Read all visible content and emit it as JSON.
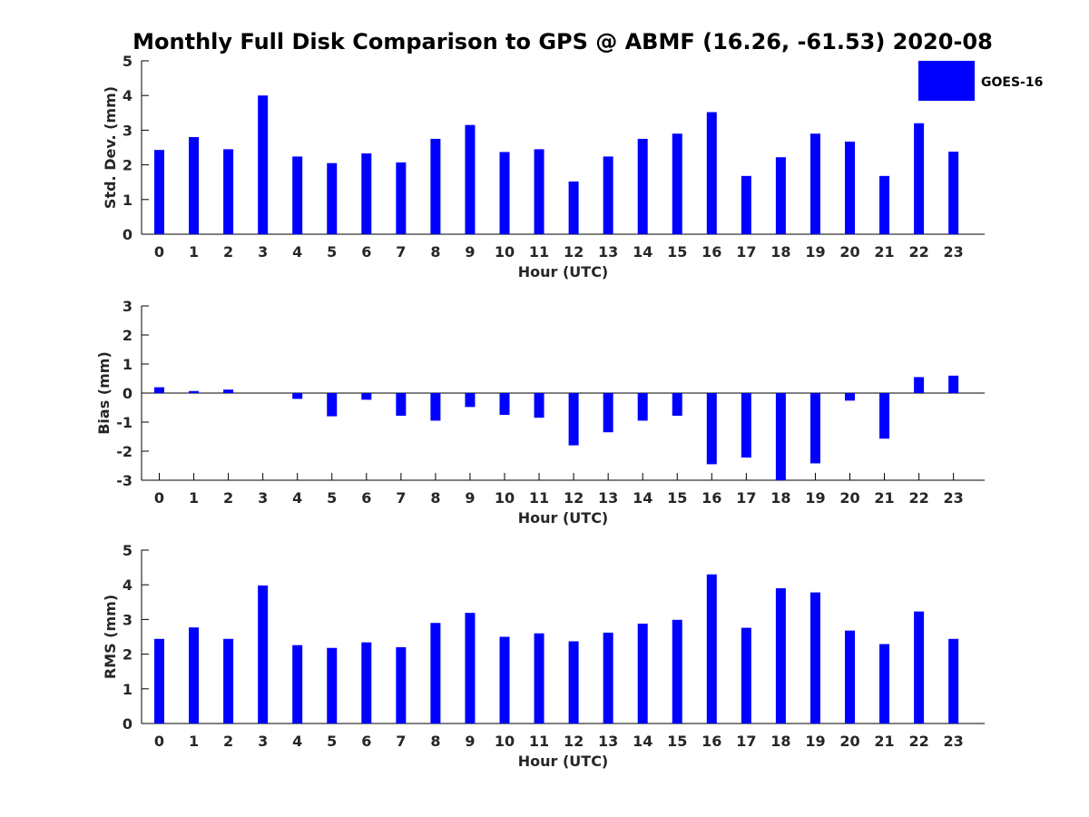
{
  "title": "Monthly Full Disk Comparison to GPS @ ABMF (16.26, -61.53) 2020-08",
  "legend": {
    "label": "GOES-16",
    "color": "#0000ff",
    "placement": "top-right"
  },
  "chart_data": [
    {
      "type": "bar",
      "xlabel": "Hour (UTC)",
      "ylabel": "Std. Dev. (mm)",
      "ylim": [
        0,
        5
      ],
      "yticks": [
        "0",
        "1",
        "2",
        "3",
        "4",
        "5"
      ],
      "categories": [
        "0",
        "1",
        "2",
        "3",
        "4",
        "5",
        "6",
        "7",
        "8",
        "9",
        "10",
        "11",
        "12",
        "13",
        "14",
        "15",
        "16",
        "17",
        "18",
        "19",
        "20",
        "21",
        "22",
        "23"
      ],
      "series": [
        {
          "name": "GOES-16",
          "color": "#0000ff",
          "values": [
            2.43,
            2.8,
            2.45,
            4.0,
            2.24,
            2.05,
            2.33,
            2.07,
            2.75,
            3.15,
            2.37,
            2.45,
            1.52,
            2.24,
            2.75,
            2.9,
            3.52,
            1.68,
            2.22,
            2.9,
            2.67,
            1.68,
            3.2,
            2.38
          ]
        }
      ]
    },
    {
      "type": "bar",
      "xlabel": "Hour (UTC)",
      "ylabel": "Bias (mm)",
      "ylim": [
        -3,
        3
      ],
      "yticks": [
        "-3",
        "-2",
        "-1",
        "0",
        "1",
        "2",
        "3"
      ],
      "categories": [
        "0",
        "1",
        "2",
        "3",
        "4",
        "5",
        "6",
        "7",
        "8",
        "9",
        "10",
        "11",
        "12",
        "13",
        "14",
        "15",
        "16",
        "17",
        "18",
        "19",
        "20",
        "21",
        "22",
        "23"
      ],
      "series": [
        {
          "name": "GOES-16",
          "color": "#0000ff",
          "values": [
            0.2,
            0.07,
            0.12,
            0.0,
            -0.2,
            -0.8,
            -0.23,
            -0.78,
            -0.95,
            -0.48,
            -0.75,
            -0.85,
            -1.8,
            -1.35,
            -0.95,
            -0.78,
            -2.45,
            -2.22,
            -3.0,
            -2.42,
            -0.26,
            -1.57,
            0.55,
            0.6
          ]
        }
      ]
    },
    {
      "type": "bar",
      "xlabel": "Hour (UTC)",
      "ylabel": "RMS (mm)",
      "ylim": [
        0,
        5
      ],
      "yticks": [
        "0",
        "1",
        "2",
        "3",
        "4",
        "5"
      ],
      "categories": [
        "0",
        "1",
        "2",
        "3",
        "4",
        "5",
        "6",
        "7",
        "8",
        "9",
        "10",
        "11",
        "12",
        "13",
        "14",
        "15",
        "16",
        "17",
        "18",
        "19",
        "20",
        "21",
        "22",
        "23"
      ],
      "series": [
        {
          "name": "GOES-16",
          "color": "#0000ff",
          "values": [
            2.44,
            2.77,
            2.44,
            3.98,
            2.26,
            2.18,
            2.34,
            2.2,
            2.9,
            3.19,
            2.5,
            2.6,
            2.37,
            2.62,
            2.88,
            2.99,
            4.3,
            2.76,
            3.9,
            3.78,
            2.68,
            2.29,
            3.23,
            2.44
          ]
        }
      ]
    }
  ]
}
